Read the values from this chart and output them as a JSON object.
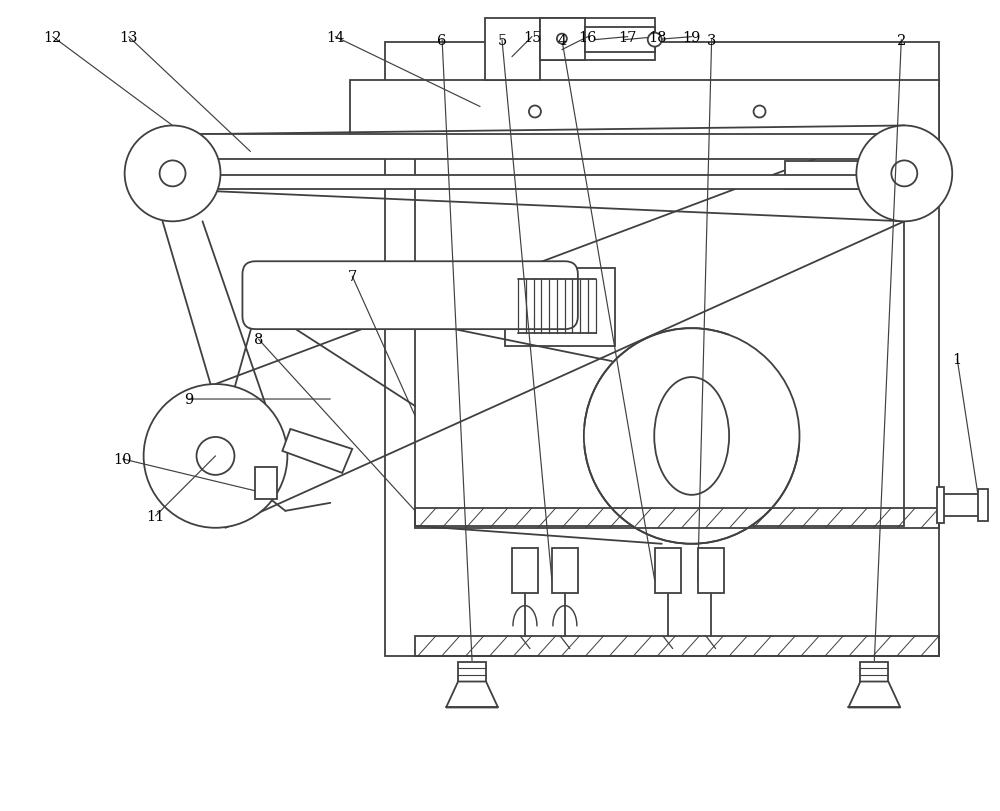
{
  "bg_color": "#ffffff",
  "line_color": "#404040",
  "lw": 1.3,
  "fig_width": 10.0,
  "fig_height": 8.12
}
